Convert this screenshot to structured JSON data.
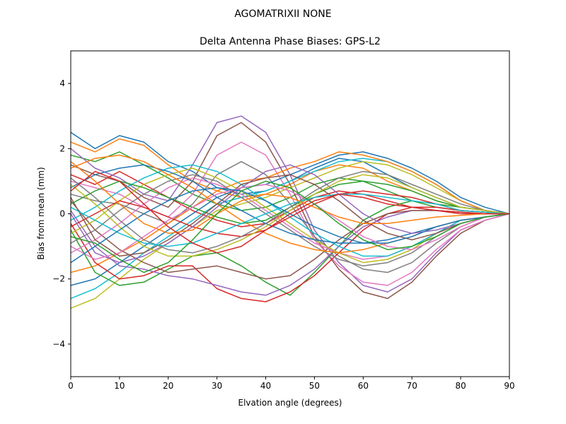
{
  "suptitle": "AGOMATRIXII     NONE",
  "chart_data": {
    "type": "line",
    "title": "Delta Antenna Phase Biases: GPS-L2",
    "xlabel": "Elvation angle (degrees)",
    "ylabel": "Bias from mean (mm)",
    "xlim": [
      0,
      90
    ],
    "ylim": [
      -5,
      5
    ],
    "xticks": [
      0,
      10,
      20,
      30,
      40,
      50,
      60,
      70,
      80,
      90
    ],
    "xtick_labels": [
      "0",
      "10",
      "20",
      "30",
      "40",
      "50",
      "60",
      "70",
      "80",
      "90"
    ],
    "yticks": [
      -4,
      -2,
      0,
      2,
      4
    ],
    "ytick_labels": [
      "−4",
      "−2",
      "0",
      "2",
      "4"
    ],
    "grid": false,
    "legend": false,
    "x": [
      0,
      5,
      10,
      15,
      20,
      25,
      30,
      35,
      40,
      45,
      50,
      55,
      60,
      65,
      70,
      75,
      80,
      85,
      90
    ],
    "colors": [
      "#1f77b4",
      "#ff7f0e",
      "#2ca02c",
      "#d62728",
      "#9467bd",
      "#8c564b",
      "#e377c2",
      "#7f7f7f",
      "#bcbd22",
      "#17becf"
    ],
    "series": [
      {
        "values": [
          2.5,
          2.0,
          2.4,
          2.2,
          1.6,
          1.3,
          0.8,
          0.6,
          0.7,
          1.0,
          1.4,
          1.7,
          1.6,
          1.2,
          0.8,
          0.5,
          0.2,
          0.1,
          0.0
        ]
      },
      {
        "values": [
          2.2,
          1.9,
          2.3,
          2.1,
          1.5,
          1.0,
          0.7,
          0.5,
          0.6,
          0.9,
          1.3,
          1.5,
          1.4,
          1.0,
          0.7,
          0.4,
          0.2,
          0.1,
          0.0
        ]
      },
      {
        "values": [
          1.8,
          1.6,
          1.9,
          1.5,
          1.1,
          0.6,
          0.3,
          0.1,
          0.2,
          0.5,
          0.9,
          1.1,
          1.0,
          0.7,
          0.4,
          0.2,
          0.1,
          0.05,
          0.0
        ]
      },
      {
        "values": [
          1.2,
          0.9,
          1.3,
          0.9,
          0.5,
          0.1,
          -0.2,
          -0.4,
          -0.3,
          0.1,
          0.5,
          0.7,
          0.6,
          0.4,
          0.2,
          0.1,
          0.0,
          0.0,
          0.0
        ]
      },
      {
        "values": [
          2.0,
          1.4,
          1.1,
          0.6,
          0.4,
          1.5,
          2.8,
          3.0,
          2.5,
          1.2,
          -0.5,
          -1.5,
          -2.2,
          -2.4,
          -2.0,
          -1.2,
          -0.5,
          -0.2,
          0.0
        ]
      },
      {
        "values": [
          1.5,
          1.2,
          1.0,
          0.5,
          0.2,
          1.0,
          2.4,
          2.8,
          2.2,
          0.9,
          -0.7,
          -1.7,
          -2.4,
          -2.6,
          -2.1,
          -1.3,
          -0.6,
          -0.2,
          0.0
        ]
      },
      {
        "values": [
          1.0,
          0.8,
          0.6,
          0.2,
          -0.1,
          0.6,
          1.8,
          2.2,
          1.8,
          0.6,
          -0.8,
          -1.6,
          -2.1,
          -2.2,
          -1.8,
          -1.1,
          -0.5,
          -0.2,
          0.0
        ]
      },
      {
        "values": [
          0.6,
          0.4,
          0.3,
          0.0,
          -0.3,
          0.3,
          1.2,
          1.6,
          1.2,
          0.3,
          -0.7,
          -1.3,
          -1.7,
          -1.8,
          -1.5,
          -0.9,
          -0.4,
          -0.1,
          0.0
        ]
      },
      {
        "values": [
          -2.9,
          -2.6,
          -2.0,
          -1.4,
          -0.9,
          -0.4,
          0.1,
          0.3,
          0.5,
          0.8,
          1.1,
          1.4,
          1.6,
          1.5,
          1.2,
          0.8,
          0.4,
          0.1,
          0.0
        ]
      },
      {
        "values": [
          -2.6,
          -2.3,
          -1.8,
          -1.2,
          -0.7,
          -0.2,
          0.3,
          0.5,
          0.7,
          1.0,
          1.3,
          1.6,
          1.7,
          1.6,
          1.3,
          0.9,
          0.4,
          0.1,
          0.0
        ]
      },
      {
        "values": [
          -2.2,
          -2.0,
          -1.5,
          -1.0,
          -0.5,
          0.0,
          0.5,
          0.8,
          0.9,
          1.2,
          1.5,
          1.8,
          1.9,
          1.7,
          1.4,
          1.0,
          0.5,
          0.2,
          0.0
        ]
      },
      {
        "values": [
          -1.8,
          -1.6,
          -1.2,
          -0.8,
          -0.3,
          0.2,
          0.7,
          1.0,
          1.1,
          1.4,
          1.6,
          1.9,
          1.8,
          1.6,
          1.3,
          0.9,
          0.4,
          0.1,
          0.0
        ]
      },
      {
        "values": [
          -0.5,
          -1.8,
          -2.2,
          -2.1,
          -1.7,
          -1.3,
          -1.2,
          -1.6,
          -2.1,
          -2.5,
          -1.8,
          -1.0,
          -0.2,
          0.2,
          0.4,
          0.3,
          0.2,
          0.1,
          0.0
        ]
      },
      {
        "values": [
          -0.3,
          -1.5,
          -2.0,
          -1.9,
          -1.6,
          -1.6,
          -2.3,
          -2.6,
          -2.7,
          -2.4,
          -1.9,
          -1.2,
          -0.5,
          0.0,
          0.2,
          0.2,
          0.1,
          0.05,
          0.0
        ]
      },
      {
        "values": [
          0.1,
          -1.0,
          -1.6,
          -1.7,
          -1.9,
          -2.0,
          -2.2,
          -2.4,
          -2.5,
          -2.2,
          -1.7,
          -1.0,
          -0.4,
          -0.1,
          0.1,
          0.1,
          0.05,
          0.0,
          0.0
        ]
      },
      {
        "values": [
          0.4,
          -0.5,
          -1.1,
          -1.5,
          -1.8,
          -1.7,
          -1.6,
          -1.8,
          -2.0,
          -1.9,
          -1.4,
          -0.8,
          -0.3,
          0.0,
          0.1,
          0.1,
          0.05,
          0.0,
          0.0
        ]
      },
      {
        "values": [
          -1.2,
          -0.8,
          -0.3,
          0.3,
          0.8,
          1.1,
          0.9,
          0.6,
          0.1,
          -0.4,
          -0.9,
          -1.2,
          -1.4,
          -1.3,
          -1.0,
          -0.6,
          -0.3,
          -0.1,
          0.0
        ]
      },
      {
        "values": [
          -0.9,
          -0.5,
          0.1,
          0.6,
          1.0,
          1.2,
          1.0,
          0.5,
          0.0,
          -0.5,
          -1.0,
          -1.4,
          -1.6,
          -1.5,
          -1.2,
          -0.7,
          -0.3,
          -0.1,
          0.0
        ]
      },
      {
        "values": [
          -0.6,
          -0.2,
          0.4,
          0.9,
          1.2,
          1.4,
          1.1,
          0.7,
          0.2,
          -0.3,
          -0.8,
          -1.2,
          -1.5,
          -1.4,
          -1.1,
          -0.6,
          -0.2,
          -0.1,
          0.0
        ]
      },
      {
        "values": [
          -0.2,
          0.2,
          0.7,
          1.1,
          1.4,
          1.5,
          1.3,
          0.9,
          0.4,
          -0.1,
          -0.6,
          -1.0,
          -1.3,
          -1.3,
          -1.0,
          -0.6,
          -0.2,
          -0.1,
          0.0
        ]
      },
      {
        "values": [
          0.8,
          1.2,
          1.4,
          1.5,
          1.3,
          1.0,
          0.5,
          0.1,
          -0.3,
          -0.6,
          -0.8,
          -0.9,
          -0.9,
          -0.8,
          -0.6,
          -0.4,
          -0.2,
          -0.1,
          0.0
        ]
      },
      {
        "values": [
          1.4,
          1.7,
          1.8,
          1.6,
          1.2,
          0.8,
          0.3,
          -0.2,
          -0.6,
          -0.9,
          -1.1,
          -1.2,
          -1.1,
          -0.9,
          -0.7,
          -0.4,
          -0.2,
          -0.1,
          0.0
        ]
      },
      {
        "values": [
          0.3,
          0.7,
          1.0,
          0.8,
          0.5,
          0.2,
          -0.1,
          -0.3,
          -0.2,
          0.2,
          0.6,
          0.9,
          1.0,
          0.9,
          0.7,
          0.4,
          0.2,
          0.1,
          0.0
        ]
      },
      {
        "values": [
          -0.4,
          0.0,
          0.4,
          0.2,
          -0.1,
          -0.4,
          -0.6,
          -0.7,
          -0.5,
          -0.1,
          0.3,
          0.6,
          0.7,
          0.6,
          0.5,
          0.3,
          0.1,
          0.05,
          0.0
        ]
      },
      {
        "values": [
          0.0,
          -1.2,
          -1.5,
          -1.3,
          -0.9,
          -0.4,
          0.2,
          0.8,
          1.3,
          1.5,
          1.2,
          0.6,
          0.0,
          -0.4,
          -0.6,
          -0.5,
          -0.3,
          -0.1,
          0.0
        ]
      },
      {
        "values": [
          0.5,
          -0.8,
          -1.3,
          -1.2,
          -0.8,
          -0.3,
          0.3,
          0.9,
          1.1,
          1.2,
          0.9,
          0.4,
          -0.2,
          -0.6,
          -0.8,
          -0.6,
          -0.3,
          -0.1,
          0.0
        ]
      },
      {
        "values": [
          -1.0,
          -1.4,
          -1.2,
          -0.7,
          -0.2,
          0.2,
          0.6,
          0.8,
          0.9,
          0.7,
          0.3,
          -0.2,
          -0.7,
          -1.0,
          -1.1,
          -0.8,
          -0.4,
          -0.1,
          0.0
        ]
      },
      {
        "values": [
          1.1,
          0.5,
          -0.2,
          -0.8,
          -1.1,
          -1.2,
          -1.0,
          -0.7,
          -0.3,
          0.2,
          0.7,
          1.1,
          1.3,
          1.2,
          0.9,
          0.6,
          0.3,
          0.1,
          0.0
        ]
      },
      {
        "values": [
          0.9,
          0.3,
          -0.4,
          -1.0,
          -1.3,
          -1.3,
          -1.1,
          -0.8,
          -0.4,
          0.1,
          0.6,
          1.0,
          1.2,
          1.1,
          0.8,
          0.5,
          0.2,
          0.1,
          0.0
        ]
      },
      {
        "values": [
          0.2,
          -0.2,
          -0.6,
          -0.9,
          -1.0,
          -0.9,
          -0.6,
          -0.3,
          0.0,
          0.3,
          0.5,
          0.6,
          0.6,
          0.5,
          0.4,
          0.3,
          0.1,
          0.05,
          0.0
        ]
      },
      {
        "values": [
          -1.5,
          -1.0,
          -0.5,
          0.0,
          0.4,
          0.7,
          0.8,
          0.7,
          0.4,
          0.0,
          -0.4,
          -0.7,
          -0.9,
          -0.9,
          -0.7,
          -0.4,
          -0.2,
          -0.1,
          0.0
        ]
      },
      {
        "values": [
          1.6,
          1.0,
          0.3,
          -0.3,
          -0.6,
          -0.5,
          0.0,
          0.4,
          0.6,
          0.5,
          0.2,
          -0.1,
          -0.3,
          -0.3,
          -0.2,
          -0.1,
          -0.05,
          0.0,
          0.0
        ]
      },
      {
        "values": [
          -0.7,
          -0.9,
          -1.4,
          -1.8,
          -1.5,
          -0.8,
          0.0,
          0.7,
          1.0,
          0.8,
          0.3,
          -0.3,
          -0.8,
          -1.1,
          -1.0,
          -0.7,
          -0.3,
          -0.1,
          0.0
        ]
      },
      {
        "values": [
          0.7,
          1.3,
          1.0,
          0.3,
          -0.4,
          -0.9,
          -1.2,
          -1.0,
          -0.5,
          0.0,
          0.4,
          0.6,
          0.5,
          0.3,
          0.2,
          0.1,
          0.05,
          0.0,
          0.0
        ]
      }
    ]
  }
}
